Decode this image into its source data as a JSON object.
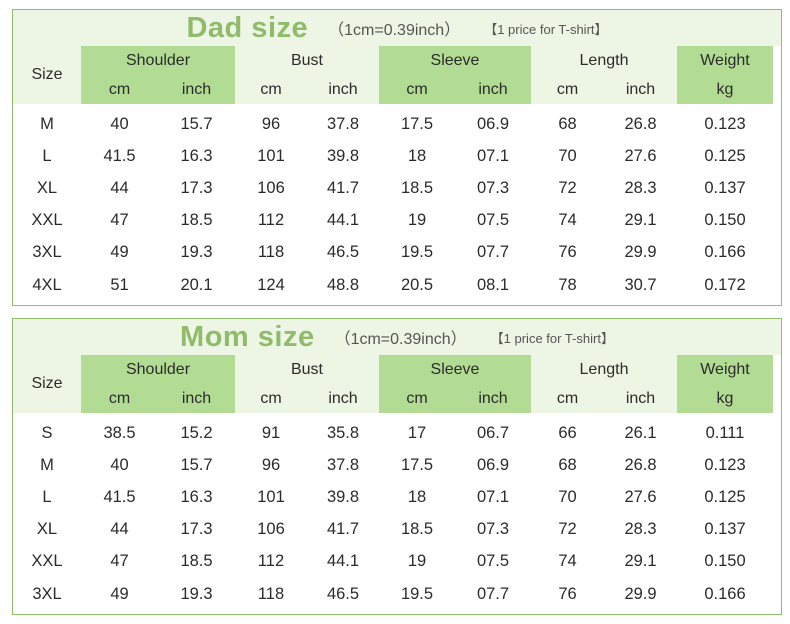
{
  "tables": [
    {
      "title": "Dad size",
      "conversion": "（1cm=0.39inch）",
      "note": "【1 price for T-shirt】",
      "headers": {
        "size": "Size",
        "shoulder": "Shoulder",
        "bust": "Bust",
        "sleeve": "Sleeve",
        "length": "Length",
        "weight": "Weight",
        "cm": "cm",
        "inch": "inch",
        "kg": "kg"
      },
      "rows": [
        [
          "M",
          "40",
          "15.7",
          "96",
          "37.8",
          "17.5",
          "06.9",
          "68",
          "26.8",
          "0.123"
        ],
        [
          "L",
          "41.5",
          "16.3",
          "101",
          "39.8",
          "18",
          "07.1",
          "70",
          "27.6",
          "0.125"
        ],
        [
          "XL",
          "44",
          "17.3",
          "106",
          "41.7",
          "18.5",
          "07.3",
          "72",
          "28.3",
          "0.137"
        ],
        [
          "XXL",
          "47",
          "18.5",
          "112",
          "44.1",
          "19",
          "07.5",
          "74",
          "29.1",
          "0.150"
        ],
        [
          "3XL",
          "49",
          "19.3",
          "118",
          "46.5",
          "19.5",
          "07.7",
          "76",
          "29.9",
          "0.166"
        ],
        [
          "4XL",
          "51",
          "20.1",
          "124",
          "48.8",
          "20.5",
          "08.1",
          "78",
          "30.7",
          "0.172"
        ]
      ]
    },
    {
      "title": "Mom size",
      "conversion": "（1cm=0.39inch）",
      "note": "【1 price for T-shirt】",
      "headers": {
        "size": "Size",
        "shoulder": "Shoulder",
        "bust": "Bust",
        "sleeve": "Sleeve",
        "length": "Length",
        "weight": "Weight",
        "cm": "cm",
        "inch": "inch",
        "kg": "kg"
      },
      "rows": [
        [
          "S",
          "38.5",
          "15.2",
          "91",
          "35.8",
          "17",
          "06.7",
          "66",
          "26.1",
          "0.111"
        ],
        [
          "M",
          "40",
          "15.7",
          "96",
          "37.8",
          "17.5",
          "06.9",
          "68",
          "26.8",
          "0.123"
        ],
        [
          "L",
          "41.5",
          "16.3",
          "101",
          "39.8",
          "18",
          "07.1",
          "70",
          "27.6",
          "0.125"
        ],
        [
          "XL",
          "44",
          "17.3",
          "106",
          "41.7",
          "18.5",
          "07.3",
          "72",
          "28.3",
          "0.137"
        ],
        [
          "XXL",
          "47",
          "18.5",
          "112",
          "44.1",
          "19",
          "07.5",
          "74",
          "29.1",
          "0.150"
        ],
        [
          "3XL",
          "49",
          "19.3",
          "118",
          "46.5",
          "19.5",
          "07.7",
          "76",
          "29.9",
          "0.166"
        ]
      ]
    }
  ],
  "colors": {
    "green": "#b2dc94",
    "pale": "#edf5e4",
    "title": "#8fbb6a",
    "border": "#8fbf6a"
  }
}
